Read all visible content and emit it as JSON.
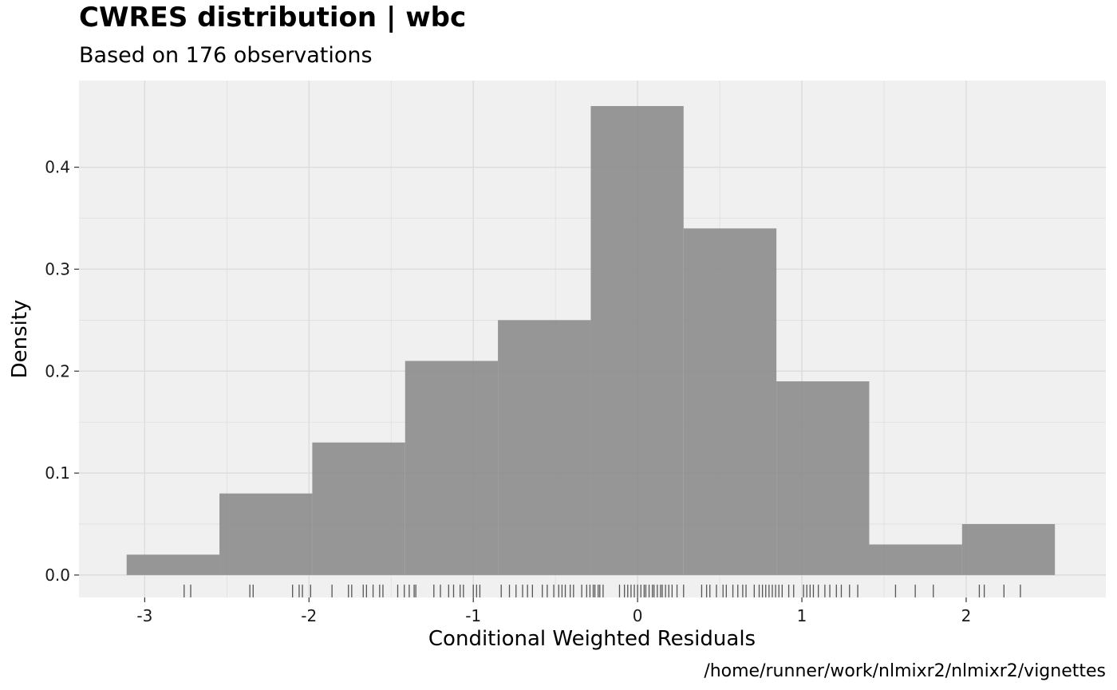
{
  "chart_data": {
    "type": "histogram",
    "title": "CWRES distribution | wbc",
    "subtitle": "Based on 176 observations",
    "xlabel": "Conditional Weighted Residuals",
    "ylabel": "Density",
    "caption": "/home/runner/work/nlmixr2/nlmixr2/vignettes",
    "xlim": [
      -3.4,
      2.85
    ],
    "ylim": [
      -0.022,
      0.485
    ],
    "x_ticks": [
      -3,
      -2,
      -1,
      0,
      1,
      2
    ],
    "y_ticks": [
      0.0,
      0.1,
      0.2,
      0.3,
      0.4
    ],
    "y_tick_labels": [
      "0.0",
      "0.1",
      "0.2",
      "0.3",
      "0.4"
    ],
    "grid": true,
    "colors": {
      "panel": "#f0f0f0",
      "grid": "#dcdcdc",
      "bar": "#8c8c8c",
      "rug": "#555555"
    },
    "bins": [
      {
        "x0": -3.11,
        "x1": -2.545,
        "density": 0.02
      },
      {
        "x0": -2.545,
        "x1": -1.98,
        "density": 0.08
      },
      {
        "x0": -1.98,
        "x1": -1.415,
        "density": 0.13
      },
      {
        "x0": -1.415,
        "x1": -0.85,
        "density": 0.21
      },
      {
        "x0": -0.85,
        "x1": -0.285,
        "density": 0.25
      },
      {
        "x0": -0.285,
        "x1": 0.28,
        "density": 0.46
      },
      {
        "x0": 0.28,
        "x1": 0.845,
        "density": 0.34
      },
      {
        "x0": 0.845,
        "x1": 1.41,
        "density": 0.19
      },
      {
        "x0": 1.41,
        "x1": 1.975,
        "density": 0.03
      },
      {
        "x0": 1.975,
        "x1": 2.54,
        "density": 0.05
      }
    ],
    "rug": [
      -2.76,
      -2.72,
      -2.36,
      -2.34,
      -2.1,
      -2.06,
      -2.04,
      -1.99,
      -1.86,
      -1.76,
      -1.74,
      -1.67,
      -1.65,
      -1.61,
      -1.57,
      -1.55,
      -1.46,
      -1.42,
      -1.39,
      -1.36,
      -1.35,
      -1.24,
      -1.2,
      -1.15,
      -1.12,
      -1.08,
      -1.06,
      -1.0,
      -0.98,
      -0.96,
      -0.83,
      -0.78,
      -0.74,
      -0.7,
      -0.67,
      -0.64,
      -0.58,
      -0.55,
      -0.51,
      -0.48,
      -0.46,
      -0.44,
      -0.41,
      -0.39,
      -0.34,
      -0.31,
      -0.29,
      -0.27,
      -0.26,
      -0.24,
      -0.23,
      -0.21,
      -0.11,
      -0.08,
      -0.06,
      -0.04,
      -0.02,
      0.0,
      0.02,
      0.04,
      0.05,
      0.07,
      0.09,
      0.1,
      0.12,
      0.14,
      0.15,
      0.17,
      0.19,
      0.21,
      0.24,
      0.28,
      0.39,
      0.42,
      0.44,
      0.48,
      0.52,
      0.54,
      0.58,
      0.61,
      0.64,
      0.66,
      0.71,
      0.74,
      0.76,
      0.78,
      0.8,
      0.82,
      0.84,
      0.86,
      0.88,
      0.92,
      0.95,
      1.01,
      1.03,
      1.05,
      1.07,
      1.1,
      1.14,
      1.17,
      1.21,
      1.24,
      1.29,
      1.34,
      1.57,
      1.69,
      1.8,
      2.08,
      2.11,
      2.23,
      2.33
    ]
  }
}
